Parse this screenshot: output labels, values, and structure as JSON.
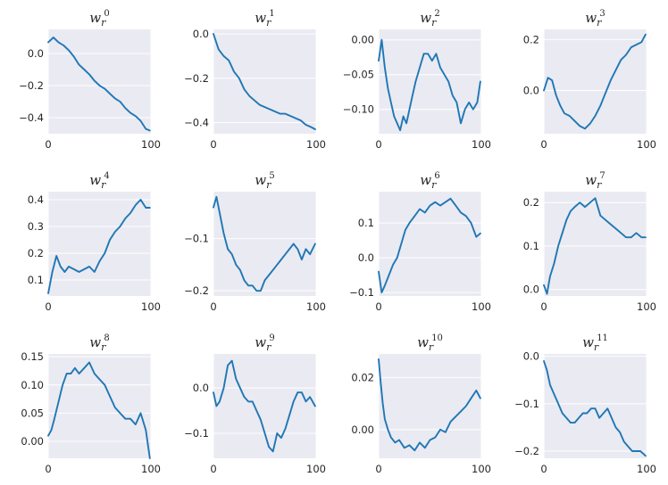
{
  "chart_data": [
    {
      "type": "line",
      "title_base": "w",
      "title_sub": "r",
      "title_sup": "0",
      "xlim": [
        0,
        100
      ],
      "ylim": [
        -0.5,
        0.15
      ],
      "xticks": [
        0,
        100
      ],
      "yticks": [
        0.0,
        -0.2,
        -0.4
      ],
      "ytick_labels": [
        "0.0",
        "−0.2",
        "−0.4"
      ],
      "grid": true,
      "x": [
        0,
        5,
        10,
        15,
        20,
        25,
        30,
        35,
        40,
        45,
        50,
        55,
        60,
        65,
        70,
        75,
        80,
        85,
        90,
        95,
        99
      ],
      "values": [
        0.07,
        0.1,
        0.07,
        0.05,
        0.02,
        -0.02,
        -0.07,
        -0.1,
        -0.13,
        -0.17,
        -0.2,
        -0.22,
        -0.25,
        -0.28,
        -0.3,
        -0.34,
        -0.37,
        -0.39,
        -0.42,
        -0.47,
        -0.48
      ]
    },
    {
      "type": "line",
      "title_base": "w",
      "title_sub": "r",
      "title_sup": "1",
      "xlim": [
        0,
        100
      ],
      "ylim": [
        -0.45,
        0.02
      ],
      "xticks": [
        0,
        100
      ],
      "yticks": [
        0.0,
        -0.2,
        -0.4
      ],
      "ytick_labels": [
        "0.0",
        "−0.2",
        "−0.4"
      ],
      "grid": true,
      "x": [
        0,
        5,
        10,
        15,
        20,
        25,
        30,
        35,
        40,
        45,
        50,
        55,
        60,
        65,
        70,
        75,
        80,
        85,
        90,
        95,
        99
      ],
      "values": [
        0.0,
        -0.07,
        -0.1,
        -0.12,
        -0.17,
        -0.2,
        -0.25,
        -0.28,
        -0.3,
        -0.32,
        -0.33,
        -0.34,
        -0.35,
        -0.36,
        -0.36,
        -0.37,
        -0.38,
        -0.39,
        -0.41,
        -0.42,
        -0.43
      ]
    },
    {
      "type": "line",
      "title_base": "w",
      "title_sub": "r",
      "title_sup": "2",
      "xlim": [
        0,
        100
      ],
      "ylim": [
        -0.135,
        0.015
      ],
      "xticks": [
        0,
        100
      ],
      "yticks": [
        0.0,
        -0.05,
        -0.1
      ],
      "ytick_labels": [
        "0.00",
        "−0.05",
        "−0.10"
      ],
      "grid": true,
      "x": [
        0,
        3,
        6,
        9,
        12,
        15,
        18,
        21,
        24,
        27,
        30,
        33,
        36,
        40,
        44,
        48,
        52,
        56,
        60,
        64,
        68,
        72,
        76,
        80,
        84,
        88,
        92,
        96,
        99
      ],
      "values": [
        -0.03,
        0.0,
        -0.04,
        -0.07,
        -0.09,
        -0.11,
        -0.12,
        -0.13,
        -0.11,
        -0.12,
        -0.1,
        -0.08,
        -0.06,
        -0.04,
        -0.02,
        -0.02,
        -0.03,
        -0.02,
        -0.04,
        -0.05,
        -0.06,
        -0.08,
        -0.09,
        -0.12,
        -0.1,
        -0.09,
        -0.1,
        -0.09,
        -0.06
      ]
    },
    {
      "type": "line",
      "title_base": "w",
      "title_sub": "r",
      "title_sup": "3",
      "xlim": [
        0,
        100
      ],
      "ylim": [
        -0.17,
        0.24
      ],
      "xticks": [
        0,
        100
      ],
      "yticks": [
        0.2,
        0.0
      ],
      "ytick_labels": [
        "0.2",
        "0.0"
      ],
      "grid": true,
      "x": [
        0,
        4,
        8,
        12,
        16,
        20,
        25,
        30,
        35,
        40,
        45,
        50,
        55,
        60,
        65,
        70,
        75,
        80,
        85,
        90,
        95,
        99
      ],
      "values": [
        0.0,
        0.05,
        0.04,
        -0.02,
        -0.06,
        -0.09,
        -0.1,
        -0.12,
        -0.14,
        -0.15,
        -0.13,
        -0.1,
        -0.06,
        -0.01,
        0.04,
        0.08,
        0.12,
        0.14,
        0.17,
        0.18,
        0.19,
        0.22
      ]
    },
    {
      "type": "line",
      "title_base": "w",
      "title_sub": "r",
      "title_sup": "4",
      "xlim": [
        0,
        100
      ],
      "ylim": [
        0.04,
        0.43
      ],
      "xticks": [
        0,
        100
      ],
      "yticks": [
        0.4,
        0.3,
        0.2,
        0.1
      ],
      "ytick_labels": [
        "0.4",
        "0.3",
        "0.2",
        "0.1"
      ],
      "grid": true,
      "x": [
        0,
        4,
        8,
        12,
        16,
        20,
        25,
        30,
        35,
        40,
        45,
        50,
        55,
        60,
        65,
        70,
        75,
        80,
        85,
        90,
        95,
        99
      ],
      "values": [
        0.05,
        0.13,
        0.19,
        0.15,
        0.13,
        0.15,
        0.14,
        0.13,
        0.14,
        0.15,
        0.13,
        0.17,
        0.2,
        0.25,
        0.28,
        0.3,
        0.33,
        0.35,
        0.38,
        0.4,
        0.37,
        0.37
      ]
    },
    {
      "type": "line",
      "title_base": "w",
      "title_sub": "r",
      "title_sup": "5",
      "xlim": [
        0,
        100
      ],
      "ylim": [
        -0.21,
        -0.01
      ],
      "xticks": [
        0,
        100
      ],
      "yticks": [
        -0.1,
        -0.2
      ],
      "ytick_labels": [
        "−0.1",
        "−0.2"
      ],
      "grid": true,
      "x": [
        0,
        3,
        6,
        10,
        14,
        18,
        22,
        26,
        30,
        34,
        38,
        42,
        46,
        50,
        54,
        58,
        62,
        66,
        70,
        74,
        78,
        82,
        86,
        90,
        94,
        99
      ],
      "values": [
        -0.04,
        -0.02,
        -0.05,
        -0.09,
        -0.12,
        -0.13,
        -0.15,
        -0.16,
        -0.18,
        -0.19,
        -0.19,
        -0.2,
        -0.2,
        -0.18,
        -0.17,
        -0.16,
        -0.15,
        -0.14,
        -0.13,
        -0.12,
        -0.11,
        -0.12,
        -0.14,
        -0.12,
        -0.13,
        -0.11
      ]
    },
    {
      "type": "line",
      "title_base": "w",
      "title_sub": "r",
      "title_sup": "6",
      "xlim": [
        0,
        100
      ],
      "ylim": [
        -0.11,
        0.19
      ],
      "xticks": [
        0,
        100
      ],
      "yticks": [
        0.1,
        0.0,
        -0.1
      ],
      "ytick_labels": [
        "0.1",
        "0.0",
        "−0.1"
      ],
      "grid": true,
      "x": [
        0,
        3,
        6,
        10,
        14,
        18,
        22,
        26,
        30,
        35,
        40,
        45,
        50,
        55,
        60,
        65,
        70,
        75,
        80,
        85,
        90,
        95,
        99
      ],
      "values": [
        -0.04,
        -0.1,
        -0.08,
        -0.05,
        -0.02,
        0.0,
        0.04,
        0.08,
        0.1,
        0.12,
        0.14,
        0.13,
        0.15,
        0.16,
        0.15,
        0.16,
        0.17,
        0.15,
        0.13,
        0.12,
        0.1,
        0.06,
        0.07
      ]
    },
    {
      "type": "line",
      "title_base": "w",
      "title_sub": "r",
      "title_sup": "7",
      "xlim": [
        0,
        100
      ],
      "ylim": [
        -0.015,
        0.225
      ],
      "xticks": [
        0,
        100
      ],
      "yticks": [
        0.2,
        0.1,
        0.0
      ],
      "ytick_labels": [
        "0.2",
        "0.1",
        "0.0"
      ],
      "grid": true,
      "x": [
        0,
        3,
        6,
        10,
        14,
        18,
        22,
        26,
        30,
        35,
        40,
        45,
        50,
        55,
        60,
        65,
        70,
        75,
        80,
        85,
        90,
        95,
        99
      ],
      "values": [
        0.01,
        -0.01,
        0.03,
        0.06,
        0.1,
        0.13,
        0.16,
        0.18,
        0.19,
        0.2,
        0.19,
        0.2,
        0.21,
        0.17,
        0.16,
        0.15,
        0.14,
        0.13,
        0.12,
        0.12,
        0.13,
        0.12,
        0.12
      ]
    },
    {
      "type": "line",
      "title_base": "w",
      "title_sub": "r",
      "title_sup": "8",
      "xlim": [
        0,
        100
      ],
      "ylim": [
        -0.03,
        0.155
      ],
      "xticks": [
        0,
        100
      ],
      "yticks": [
        0.15,
        0.1,
        0.05,
        0.0
      ],
      "ytick_labels": [
        "0.15",
        "0.10",
        "0.05",
        "0.00"
      ],
      "grid": true,
      "x": [
        0,
        3,
        6,
        10,
        14,
        18,
        22,
        26,
        30,
        35,
        40,
        45,
        50,
        55,
        60,
        65,
        70,
        75,
        80,
        85,
        90,
        95,
        99
      ],
      "values": [
        0.01,
        0.02,
        0.04,
        0.07,
        0.1,
        0.12,
        0.12,
        0.13,
        0.12,
        0.13,
        0.14,
        0.12,
        0.11,
        0.1,
        0.08,
        0.06,
        0.05,
        0.04,
        0.04,
        0.03,
        0.05,
        0.02,
        -0.03
      ]
    },
    {
      "type": "line",
      "title_base": "w",
      "title_sub": "r",
      "title_sup": "9",
      "xlim": [
        0,
        100
      ],
      "ylim": [
        -0.155,
        0.075
      ],
      "xticks": [
        0,
        100
      ],
      "yticks": [
        0.0,
        -0.1
      ],
      "ytick_labels": [
        "0.0",
        "−0.1"
      ],
      "grid": true,
      "x": [
        0,
        3,
        6,
        10,
        14,
        18,
        22,
        26,
        30,
        34,
        38,
        42,
        46,
        50,
        54,
        58,
        62,
        66,
        70,
        74,
        78,
        82,
        86,
        90,
        94,
        99
      ],
      "values": [
        -0.01,
        -0.04,
        -0.03,
        0.0,
        0.05,
        0.06,
        0.02,
        0.0,
        -0.02,
        -0.03,
        -0.03,
        -0.05,
        -0.07,
        -0.1,
        -0.13,
        -0.14,
        -0.1,
        -0.11,
        -0.09,
        -0.06,
        -0.03,
        -0.01,
        -0.01,
        -0.03,
        -0.02,
        -0.04
      ]
    },
    {
      "type": "line",
      "title_base": "w",
      "title_sub": "r",
      "title_sup": "10",
      "xlim": [
        0,
        100
      ],
      "ylim": [
        -0.011,
        0.029
      ],
      "xticks": [
        0,
        100
      ],
      "yticks": [
        0.02,
        0.0
      ],
      "ytick_labels": [
        "0.02",
        "0.00"
      ],
      "grid": true,
      "x": [
        0,
        2,
        4,
        6,
        9,
        12,
        16,
        20,
        25,
        30,
        35,
        40,
        45,
        50,
        55,
        60,
        65,
        70,
        75,
        80,
        85,
        90,
        95,
        99
      ],
      "values": [
        0.027,
        0.018,
        0.01,
        0.004,
        0.0,
        -0.003,
        -0.005,
        -0.004,
        -0.007,
        -0.006,
        -0.008,
        -0.005,
        -0.007,
        -0.004,
        -0.003,
        0.0,
        -0.001,
        0.003,
        0.005,
        0.007,
        0.009,
        0.012,
        0.015,
        0.012
      ]
    },
    {
      "type": "line",
      "title_base": "w",
      "title_sub": "r",
      "title_sup": "11",
      "xlim": [
        0,
        100
      ],
      "ylim": [
        -0.215,
        0.005
      ],
      "xticks": [
        0,
        100
      ],
      "yticks": [
        0.0,
        -0.1,
        -0.2
      ],
      "ytick_labels": [
        "0.0",
        "−0.1",
        "−0.2"
      ],
      "grid": true,
      "x": [
        0,
        3,
        6,
        10,
        14,
        18,
        22,
        26,
        30,
        34,
        38,
        42,
        46,
        50,
        54,
        58,
        62,
        66,
        70,
        74,
        78,
        82,
        86,
        90,
        94,
        99
      ],
      "values": [
        -0.01,
        -0.03,
        -0.06,
        -0.08,
        -0.1,
        -0.12,
        -0.13,
        -0.14,
        -0.14,
        -0.13,
        -0.12,
        -0.12,
        -0.11,
        -0.11,
        -0.13,
        -0.12,
        -0.11,
        -0.13,
        -0.15,
        -0.16,
        -0.18,
        -0.19,
        -0.2,
        -0.2,
        -0.2,
        -0.21
      ]
    }
  ]
}
